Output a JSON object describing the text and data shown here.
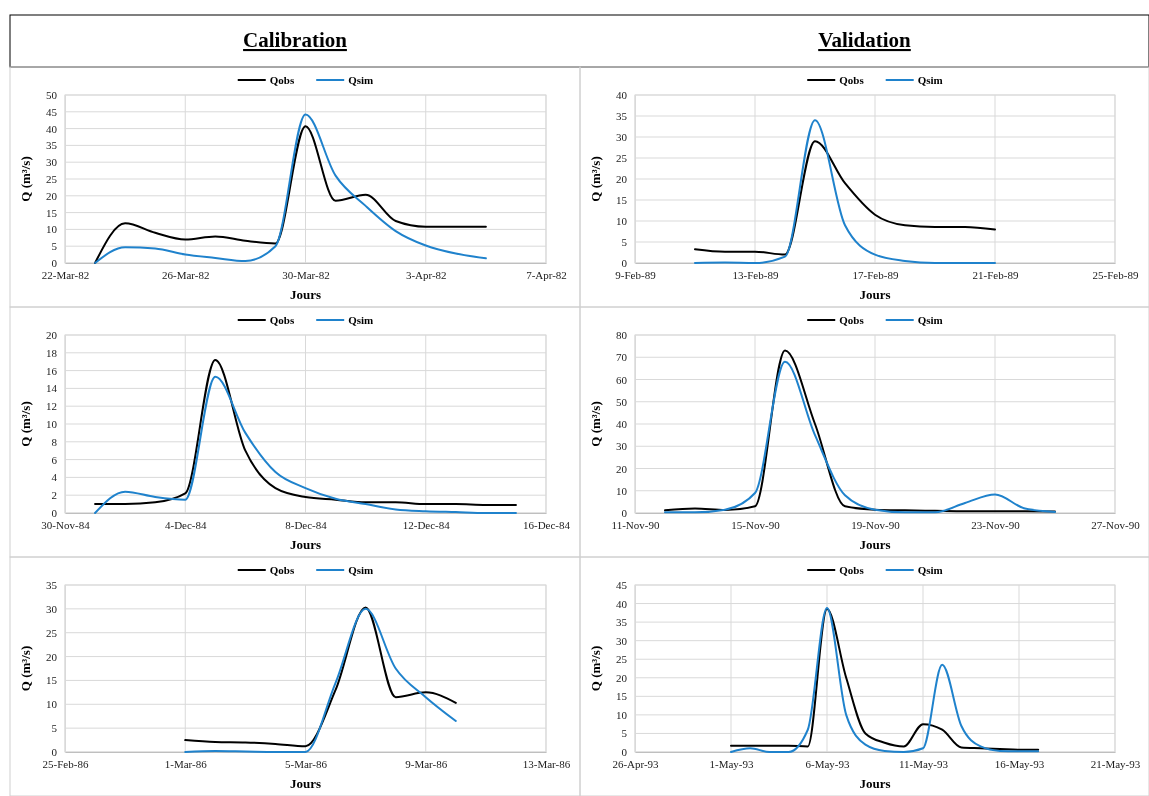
{
  "chart_data": [
    {
      "type": "line",
      "title": "Calibration",
      "xlabel": "Jours",
      "ylabel": "Q (m³/s)",
      "legend": "top",
      "grid": true,
      "x": [
        "1982-03-23",
        "1982-03-24",
        "1982-03-25",
        "1982-03-26",
        "1982-03-27",
        "1982-03-28",
        "1982-03-29",
        "1982-03-30",
        "1982-03-31",
        "1982-04-01",
        "1982-04-02",
        "1982-04-03",
        "1982-04-04",
        "1982-04-05"
      ],
      "series": [
        {
          "name": "Qobs",
          "color": "#000000",
          "values": [
            0,
            11.8,
            9,
            7,
            7.9,
            6.6,
            5.8,
            40.7,
            18.5,
            20.3,
            12.5,
            10.8,
            10.8,
            10.8
          ]
        },
        {
          "name": "Qsim",
          "color": "#1f82cc",
          "values": [
            0,
            4.7,
            4.3,
            2.5,
            1.5,
            0.6,
            5,
            44.2,
            26,
            17,
            9.5,
            5.2,
            2.8,
            1.4
          ]
        }
      ],
      "xlim": [
        "1982-03-22",
        "1982-04-07"
      ],
      "xticks": [
        {
          "value": "1982-03-22",
          "label": "22-Mar-82"
        },
        {
          "value": "1982-03-26",
          "label": "26-Mar-82"
        },
        {
          "value": "1982-03-30",
          "label": "30-Mar-82"
        },
        {
          "value": "1982-04-03",
          "label": "3-Apr-82"
        },
        {
          "value": "1982-04-07",
          "label": "7-Apr-82"
        }
      ],
      "ylim": [
        0,
        50
      ],
      "yticks": [
        0,
        5,
        10,
        15,
        20,
        25,
        30,
        35,
        40,
        45,
        50
      ]
    },
    {
      "type": "line",
      "title": "Validation",
      "xlabel": "Jours",
      "ylabel": "Q (m³/s)",
      "legend": "top",
      "grid": true,
      "x": [
        "1989-02-11",
        "1989-02-12",
        "1989-02-13",
        "1989-02-14",
        "1989-02-15",
        "1989-02-16",
        "1989-02-17",
        "1989-02-18",
        "1989-02-19",
        "1989-02-20",
        "1989-02-21"
      ],
      "series": [
        {
          "name": "Qobs",
          "color": "#000000",
          "values": [
            3.3,
            2.7,
            2.7,
            2,
            29,
            19,
            11.5,
            9,
            8.6,
            8.6,
            8
          ]
        },
        {
          "name": "Qsim",
          "color": "#1f82cc",
          "values": [
            0,
            0.1,
            0,
            1.5,
            34,
            9,
            2,
            0.5,
            0,
            0,
            0
          ]
        }
      ],
      "xlim": [
        "1989-02-09",
        "1989-02-25"
      ],
      "xticks": [
        {
          "value": "1989-02-09",
          "label": "9-Feb-89"
        },
        {
          "value": "1989-02-13",
          "label": "13-Feb-89"
        },
        {
          "value": "1989-02-17",
          "label": "17-Feb-89"
        },
        {
          "value": "1989-02-21",
          "label": "21-Feb-89"
        },
        {
          "value": "1989-02-25",
          "label": "25-Feb-89"
        }
      ],
      "ylim": [
        0,
        40
      ],
      "yticks": [
        0,
        5,
        10,
        15,
        20,
        25,
        30,
        35,
        40
      ]
    },
    {
      "type": "line",
      "xlabel": "Jours",
      "ylabel": "Q (m³/s)",
      "legend": "top",
      "grid": true,
      "x": [
        "1984-12-01",
        "1984-12-02",
        "1984-12-03",
        "1984-12-04",
        "1984-12-05",
        "1984-12-06",
        "1984-12-07",
        "1984-12-08",
        "1984-12-09",
        "1984-12-10",
        "1984-12-11",
        "1984-12-12",
        "1984-12-13",
        "1984-12-14",
        "1984-12-15"
      ],
      "series": [
        {
          "name": "Qobs",
          "color": "#000000",
          "values": [
            1,
            1,
            1.2,
            2.2,
            17.2,
            7,
            2.8,
            1.8,
            1.5,
            1.2,
            1.2,
            1,
            1,
            0.9,
            0.9
          ]
        },
        {
          "name": "Qsim",
          "color": "#1f82cc",
          "values": [
            0,
            2.4,
            1.8,
            1.5,
            15.3,
            9,
            4.6,
            2.8,
            1.6,
            1,
            0.4,
            0.2,
            0.1,
            0,
            0
          ]
        }
      ],
      "xlim": [
        "1984-11-30",
        "1984-12-16"
      ],
      "xticks": [
        {
          "value": "1984-11-30",
          "label": "30-Nov-84"
        },
        {
          "value": "1984-12-04",
          "label": "4-Dec-84"
        },
        {
          "value": "1984-12-08",
          "label": "8-Dec-84"
        },
        {
          "value": "1984-12-12",
          "label": "12-Dec-84"
        },
        {
          "value": "1984-12-16",
          "label": "16-Dec-84"
        }
      ],
      "ylim": [
        0,
        20
      ],
      "yticks": [
        0,
        2,
        4,
        6,
        8,
        10,
        12,
        14,
        16,
        18,
        20
      ]
    },
    {
      "type": "line",
      "xlabel": "Jours",
      "ylabel": "Q (m³/s)",
      "legend": "top",
      "grid": true,
      "x": [
        "1990-11-12",
        "1990-11-13",
        "1990-11-14",
        "1990-11-15",
        "1990-11-16",
        "1990-11-17",
        "1990-11-18",
        "1990-11-19",
        "1990-11-20",
        "1990-11-21",
        "1990-11-22",
        "1990-11-23",
        "1990-11-24",
        "1990-11-25"
      ],
      "series": [
        {
          "name": "Qobs",
          "color": "#000000",
          "values": [
            1.2,
            2,
            1.3,
            3,
            73,
            40,
            3,
            1.5,
            1.2,
            1,
            0.8,
            0.8,
            0.8,
            0.7
          ]
        },
        {
          "name": "Qsim",
          "color": "#1f82cc",
          "values": [
            0.3,
            0.3,
            1.5,
            9,
            68,
            35,
            8,
            1.5,
            0.3,
            0.3,
            4.5,
            8.3,
            2,
            0.5
          ]
        }
      ],
      "xlim": [
        "1990-11-11",
        "1990-11-27"
      ],
      "xticks": [
        {
          "value": "1990-11-11",
          "label": "11-Nov-90"
        },
        {
          "value": "1990-11-15",
          "label": "15-Nov-90"
        },
        {
          "value": "1990-11-19",
          "label": "19-Nov-90"
        },
        {
          "value": "1990-11-23",
          "label": "23-Nov-90"
        },
        {
          "value": "1990-11-27",
          "label": "27-Nov-90"
        }
      ],
      "ylim": [
        0,
        80
      ],
      "yticks": [
        0,
        10,
        20,
        30,
        40,
        50,
        60,
        70,
        80
      ]
    },
    {
      "type": "line",
      "xlabel": "Jours",
      "ylabel": "Q (m³/s)",
      "legend": "top",
      "grid": true,
      "x": [
        "1986-03-01",
        "1986-03-02",
        "1986-03-03",
        "1986-03-04",
        "1986-03-05",
        "1986-03-06",
        "1986-03-07",
        "1986-03-08",
        "1986-03-09",
        "1986-03-10"
      ],
      "series": [
        {
          "name": "Qobs",
          "color": "#000000",
          "values": [
            2.5,
            2.1,
            2,
            1.7,
            1.2,
            13,
            30.3,
            11.5,
            12.5,
            10.3
          ]
        },
        {
          "name": "Qsim",
          "color": "#1f82cc",
          "values": [
            0,
            0.2,
            0.1,
            0,
            0,
            14.5,
            30,
            17.5,
            11.5,
            6.5
          ]
        }
      ],
      "xlim": [
        "1986-02-25",
        "1986-03-13"
      ],
      "xticks": [
        {
          "value": "1986-02-25",
          "label": "25-Feb-86"
        },
        {
          "value": "1986-03-01",
          "label": "1-Mar-86"
        },
        {
          "value": "1986-03-05",
          "label": "5-Mar-86"
        },
        {
          "value": "1986-03-09",
          "label": "9-Mar-86"
        },
        {
          "value": "1986-03-13",
          "label": "13-Mar-86"
        }
      ],
      "ylim": [
        0,
        35
      ],
      "yticks": [
        0,
        5,
        10,
        15,
        20,
        25,
        30,
        35
      ]
    },
    {
      "type": "line",
      "xlabel": "Jours",
      "ylabel": "Q (m³/s)",
      "legend": "top",
      "grid": true,
      "x": [
        "1993-05-01",
        "1993-05-02",
        "1993-05-03",
        "1993-05-04",
        "1993-05-05",
        "1993-05-06",
        "1993-05-07",
        "1993-05-08",
        "1993-05-09",
        "1993-05-10",
        "1993-05-11",
        "1993-05-12",
        "1993-05-13",
        "1993-05-14",
        "1993-05-15",
        "1993-05-16",
        "1993-05-17"
      ],
      "series": [
        {
          "name": "Qobs",
          "color": "#000000",
          "values": [
            1.7,
            1.7,
            1.7,
            1.7,
            1.5,
            38.5,
            20,
            5,
            2.5,
            1.5,
            7.5,
            6,
            1.2,
            1,
            0.8,
            0.6,
            0.6
          ]
        },
        {
          "name": "Qsim",
          "color": "#1f82cc",
          "values": [
            0,
            1,
            0,
            0,
            6,
            38.8,
            10,
            2,
            0.3,
            0,
            1,
            23.5,
            7,
            1.5,
            0.3,
            0.2,
            0.2
          ]
        }
      ],
      "xlim": [
        "1993-04-26",
        "1993-05-21"
      ],
      "xticks": [
        {
          "value": "1993-04-26",
          "label": "26-Apr-93"
        },
        {
          "value": "1993-05-01",
          "label": "1-May-93"
        },
        {
          "value": "1993-05-06",
          "label": "6-May-93"
        },
        {
          "value": "1993-05-11",
          "label": "11-May-93"
        },
        {
          "value": "1993-05-16",
          "label": "16-May-93"
        },
        {
          "value": "1993-05-21",
          "label": "21-May-93"
        }
      ],
      "ylim": [
        0,
        45
      ],
      "yticks": [
        0,
        5,
        10,
        15,
        20,
        25,
        30,
        35,
        40,
        45
      ]
    }
  ]
}
